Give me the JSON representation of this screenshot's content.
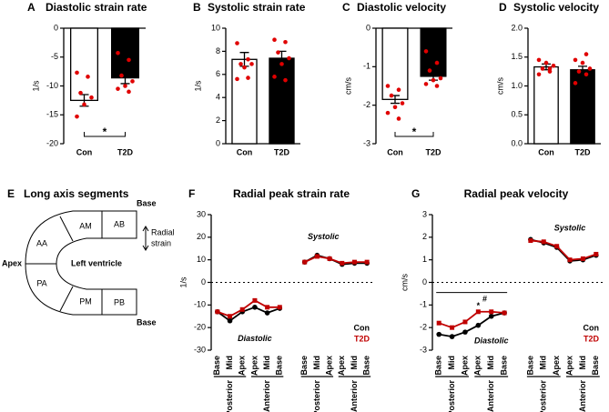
{
  "chart_data": [
    {
      "type": "bar",
      "panel": "A",
      "title": "Diastolic strain rate",
      "ylabel": "1/s",
      "categories": [
        "Con",
        "T2D"
      ],
      "values": [
        -12.5,
        -8.6
      ],
      "errors": [
        1.0,
        1.0
      ],
      "colors": [
        "#ffffff",
        "#000000"
      ],
      "point_color": "#e00000",
      "points": [
        [
          -7.7,
          -8.4,
          -11.2,
          -12.0,
          -13.2,
          -15.3
        ],
        [
          -4.3,
          -5.5,
          -8.2,
          -9.2,
          -10.0,
          -10.5,
          -11.0
        ]
      ],
      "ylim": [
        -20,
        0
      ],
      "yticks": [
        -20,
        -15,
        -10,
        -5,
        0
      ],
      "significance": "*"
    },
    {
      "type": "bar",
      "panel": "B",
      "title": "Systolic strain rate",
      "ylabel": "1/s",
      "categories": [
        "Con",
        "T2D"
      ],
      "values": [
        7.3,
        7.4
      ],
      "errors": [
        0.6,
        0.6
      ],
      "colors": [
        "#ffffff",
        "#000000"
      ],
      "point_color": "#e00000",
      "points": [
        [
          8.7,
          7.3,
          6.9,
          6.9,
          6.6,
          5.6,
          5.7
        ],
        [
          9.0,
          8.8,
          7.9,
          7.4,
          6.9,
          5.8,
          5.5
        ]
      ],
      "ylim": [
        0,
        10
      ],
      "yticks": [
        0,
        2,
        4,
        6,
        8,
        10
      ]
    },
    {
      "type": "bar",
      "panel": "C",
      "title": "Diastolic velocity",
      "ylabel": "cm/s",
      "categories": [
        "Con",
        "T2D"
      ],
      "values": [
        -1.85,
        -1.25
      ],
      "errors": [
        0.1,
        0.1
      ],
      "colors": [
        "#ffffff",
        "#000000"
      ],
      "point_color": "#e00000",
      "points": [
        [
          -1.5,
          -1.6,
          -1.75,
          -1.95,
          -2.05,
          -2.2,
          -2.35
        ],
        [
          -0.6,
          -0.9,
          -1.1,
          -1.3,
          -1.35,
          -1.45,
          -1.5
        ]
      ],
      "ylim": [
        -3,
        0
      ],
      "yticks": [
        -3,
        -2,
        -1,
        0
      ],
      "significance": "*"
    },
    {
      "type": "bar",
      "panel": "D",
      "title": "Systolic velocity",
      "ylabel": "cm/s",
      "categories": [
        "Con",
        "T2D"
      ],
      "values": [
        1.33,
        1.28
      ],
      "errors": [
        0.05,
        0.06
      ],
      "colors": [
        "#ffffff",
        "#000000"
      ],
      "point_color": "#e00000",
      "points": [
        [
          1.2,
          1.25,
          1.3,
          1.35,
          1.4,
          1.45,
          1.3
        ],
        [
          1.05,
          1.2,
          1.25,
          1.3,
          1.4,
          1.45,
          1.55
        ]
      ],
      "ylim": [
        0,
        2
      ],
      "yticks": [
        {
          "value": 0,
          "label": "0.0"
        },
        {
          "value": 0.5,
          "label": "0.5"
        },
        {
          "value": 1,
          "label": "1.0"
        },
        {
          "value": 1.5,
          "label": "1.5"
        },
        {
          "value": 2,
          "label": "2.0"
        }
      ]
    },
    {
      "type": "line",
      "panel": "F",
      "title": "Radial peak strain rate",
      "ylabel": "1/s",
      "zero_line": true,
      "categories": [
        "Base",
        "Mid",
        "Apex",
        "Apex",
        "Mid",
        "Base",
        null,
        "Base",
        "Mid",
        "Apex",
        "Apex",
        "Mid",
        "Base"
      ],
      "groups": [
        "Posterior",
        "Anterior",
        "Posterior",
        "Anterior"
      ],
      "series": [
        {
          "name": "Con",
          "color": "#000000",
          "values": [
            -13,
            -17,
            -13,
            -11,
            -13.5,
            -11.5,
            null,
            9,
            12,
            10.5,
            8,
            8.5,
            8.5
          ]
        },
        {
          "name": "T2D",
          "color": "#c00000",
          "values": [
            -13,
            -15,
            -12,
            -8,
            -11,
            -11,
            null,
            9,
            11.5,
            10.5,
            8.5,
            9,
            9
          ]
        }
      ],
      "annotations": [
        "Systolic",
        "Diastolic"
      ],
      "ylim": [
        -30,
        30
      ],
      "yticks": [
        -30,
        -20,
        -10,
        0,
        10,
        20,
        30
      ]
    },
    {
      "type": "line",
      "panel": "G",
      "title": "Radial peak velocity",
      "ylabel": "cm/s",
      "zero_line": true,
      "categories": [
        "Base",
        "Mid",
        "Apex",
        "Apex",
        "Mid",
        "Base",
        null,
        "Base",
        "Mid",
        "Apex",
        "Apex",
        "Mid",
        "Base"
      ],
      "groups": [
        "Posterior",
        "Anterior",
        "Posterior",
        "Anterior"
      ],
      "series": [
        {
          "name": "Con",
          "color": "#000000",
          "values": [
            -2.3,
            -2.4,
            -2.2,
            -1.9,
            -1.5,
            -1.35,
            null,
            1.9,
            1.75,
            1.55,
            0.95,
            1.0,
            1.2
          ]
        },
        {
          "name": "T2D",
          "color": "#c00000",
          "values": [
            -1.8,
            -2.0,
            -1.75,
            -1.3,
            -1.3,
            -1.35,
            null,
            1.85,
            1.8,
            1.6,
            1.0,
            1.05,
            1.25
          ]
        }
      ],
      "annotations": [
        "Systolic",
        "Diastolic",
        "#",
        "*"
      ],
      "ylim": [
        -3,
        3
      ],
      "yticks": [
        -3,
        -2,
        -1,
        0,
        1,
        2,
        3
      ]
    }
  ],
  "diagram": {
    "panel": "E",
    "title": "Long axis segments",
    "base_top": "Base",
    "base_bottom": "Base",
    "apex": "Apex",
    "center": "Left ventricle",
    "radial": [
      "Radial",
      "strain"
    ],
    "segments": [
      "AB",
      "AM",
      "AA",
      "PA",
      "PM",
      "PB"
    ]
  }
}
